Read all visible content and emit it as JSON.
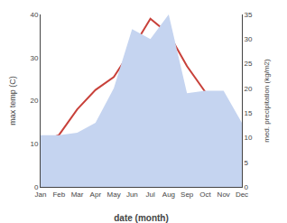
{
  "chart_data": {
    "type": "line",
    "categories": [
      "Jan",
      "Feb",
      "Mar",
      "Apr",
      "May",
      "Jun",
      "Jul",
      "Aug",
      "Sep",
      "Oct",
      "Nov",
      "Dec"
    ],
    "series": [
      {
        "type": "area",
        "axis": "y2",
        "color": "#c5d4f0",
        "values": [
          10.5,
          10.5,
          11.0,
          13.0,
          20.0,
          32.0,
          30.0,
          35.0,
          19.0,
          19.5,
          19.5,
          13.0
        ]
      },
      {
        "type": "line",
        "color": "#c8413a",
        "values": [
          10.5,
          12.0,
          18.0,
          22.5,
          25.5,
          32.0,
          39.0,
          35.5,
          28.0,
          22.0,
          16.0,
          13.5
        ]
      }
    ],
    "xlabel": "date (month)",
    "ylabel": "max temp (C)",
    "y2label": "med. precipitation (kg/m2)",
    "ylim": [
      0,
      40
    ],
    "yticks": [
      0,
      10,
      20,
      30,
      40
    ],
    "y2lim": [
      0,
      35
    ],
    "y2ticks": [
      0,
      5,
      10,
      15,
      20,
      25,
      30,
      35
    ],
    "grid": false
  }
}
